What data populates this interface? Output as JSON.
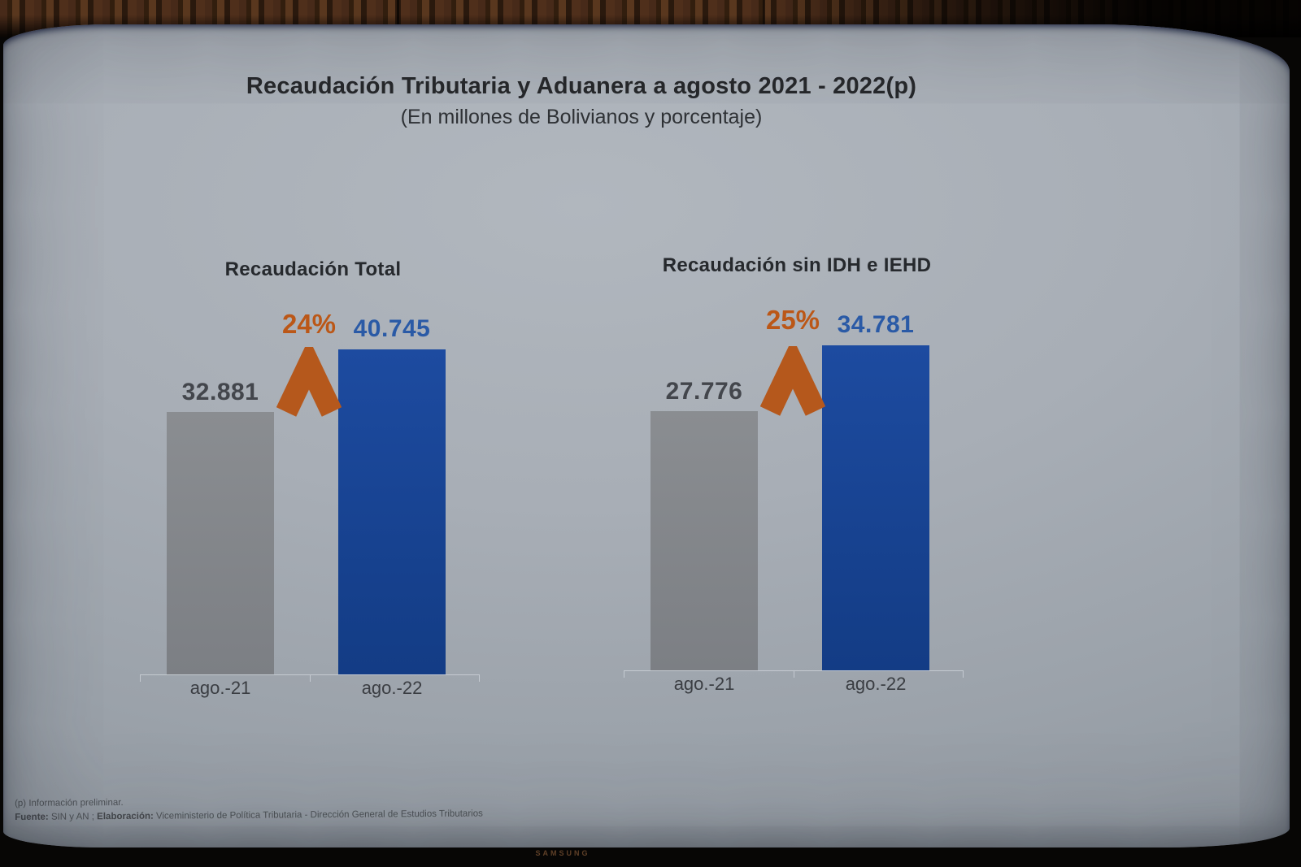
{
  "monitor": {
    "brand": "SAMSUNG"
  },
  "slide": {
    "title": "Recaudación Tributaria y Aduanera a agosto 2021 - 2022(p)",
    "subtitle": "(En millones de Bolivianos y porcentaje)",
    "footnote_line1": "(p) Información preliminar.",
    "footnote_source_label": "Fuente:",
    "footnote_source_text": " SIN y AN ; ",
    "footnote_elab_label": "Elaboración:",
    "footnote_elab_text": " Viceministerio de Política Tributaria - Dirección General de Estudios Tributarios"
  },
  "colors": {
    "accent-orange": "#b5581c",
    "bar-prev": "#85888d",
    "bar-curr": "#1b479a",
    "text-curr": "#2a5aa6",
    "text-prev": "#43464c",
    "title-color": "#26282b"
  },
  "chart_data": [
    {
      "type": "bar",
      "title": "Recaudación Total",
      "categories": [
        "ago.-21",
        "ago.-22"
      ],
      "values": [
        32881,
        40745
      ],
      "value_labels": [
        "32.881",
        "40.745"
      ],
      "growth_label": "24%",
      "series_colors": [
        "#85888d",
        "#1b479a"
      ],
      "ylabel": "millones de Bolivianos",
      "ylim": [
        0,
        40745
      ],
      "grid": false,
      "legend": "none",
      "annotations": [
        "orange up-chevron between bars marking 24% growth"
      ]
    },
    {
      "type": "bar",
      "title": "Recaudación sin IDH e IEHD",
      "categories": [
        "ago.-21",
        "ago.-22"
      ],
      "values": [
        27776,
        34781
      ],
      "value_labels": [
        "27.776",
        "34.781"
      ],
      "growth_label": "25%",
      "series_colors": [
        "#85888d",
        "#1b479a"
      ],
      "ylabel": "millones de Bolivianos",
      "ylim": [
        0,
        34781
      ],
      "grid": false,
      "legend": "none",
      "annotations": [
        "orange up-chevron between bars marking 25% growth"
      ]
    }
  ]
}
